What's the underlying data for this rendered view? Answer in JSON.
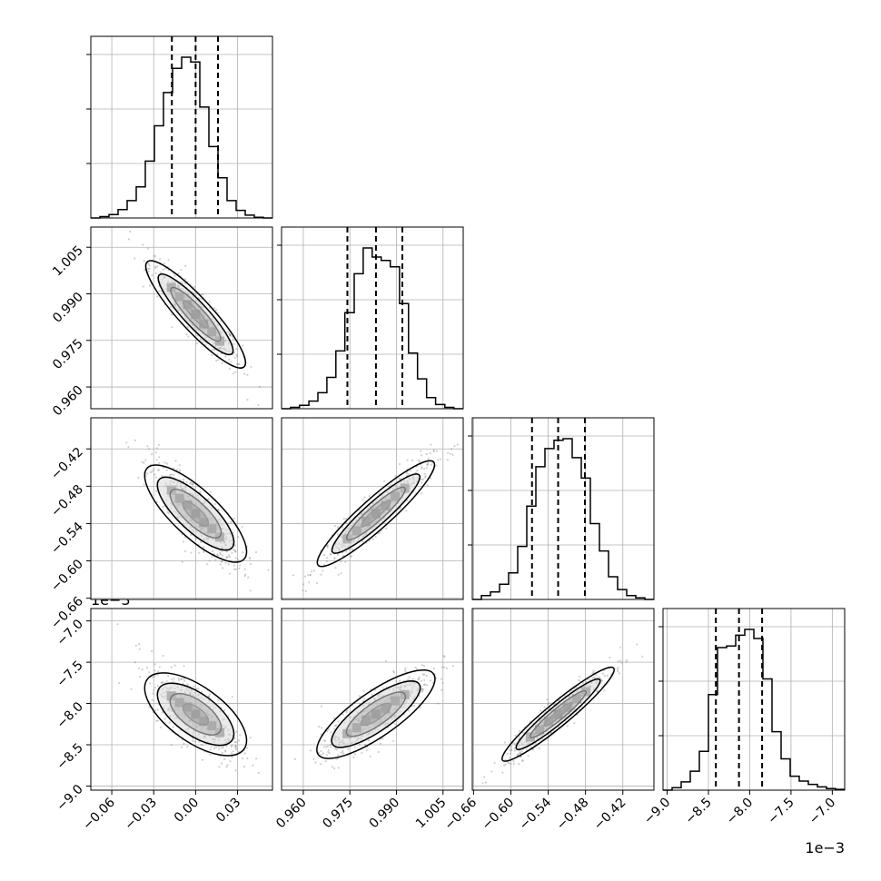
{
  "chart_data": {
    "type": "corner",
    "grid": true,
    "parameters": [
      {
        "index": 0,
        "range": [
          -0.075,
          0.055
        ],
        "ticks": [
          -0.06,
          -0.03,
          0.0,
          0.03
        ],
        "tick_labels": [
          "−0.06",
          "−0.03",
          "0.00",
          "0.03"
        ],
        "offset_label": "",
        "quantiles": [
          -0.017,
          0.0,
          0.016
        ]
      },
      {
        "index": 1,
        "range": [
          0.953,
          1.0115
        ],
        "ticks": [
          0.96,
          0.975,
          0.99,
          1.005
        ],
        "tick_labels": [
          "0.960",
          "0.975",
          "0.990",
          "1.005"
        ],
        "offset_label": "",
        "quantiles": [
          0.9742,
          0.9834,
          0.9919
        ]
      },
      {
        "index": 2,
        "range": [
          -0.662,
          -0.37
        ],
        "ticks": [
          -0.66,
          -0.6,
          -0.54,
          -0.48,
          -0.42
        ],
        "tick_labels": [
          "−0.66",
          "−0.60",
          "−0.54",
          "−0.48",
          "−0.42"
        ],
        "offset_label": "",
        "quantiles": [
          -0.566,
          -0.524,
          -0.481
        ]
      },
      {
        "index": 3,
        "range": [
          -9.05,
          -6.85
        ],
        "ticks": [
          -9.0,
          -8.5,
          -8.0,
          -7.5,
          -7.0
        ],
        "tick_labels": [
          "−9.0",
          "−8.5",
          "−8.0",
          "−7.5",
          "−7.0"
        ],
        "offset_label": "1e−3",
        "quantiles": [
          -8.41,
          -8.13,
          -7.85
        ]
      }
    ],
    "histograms": [
      {
        "param": 0,
        "edges": [
          -0.075,
          -0.0685,
          -0.062,
          -0.0555,
          -0.049,
          -0.0425,
          -0.036,
          -0.0295,
          -0.023,
          -0.0165,
          -0.01,
          -0.0035,
          0.003,
          0.0095,
          0.016,
          0.0225,
          0.029,
          0.0355,
          0.042,
          0.0485,
          0.055
        ],
        "counts": [
          0,
          2,
          5,
          12,
          25,
          45,
          82,
          133,
          181,
          216,
          232,
          225,
          160,
          103,
          58,
          25,
          11,
          4,
          1,
          0
        ]
      },
      {
        "param": 1,
        "edges": [
          0.953,
          0.9559,
          0.9588,
          0.9618,
          0.9647,
          0.9676,
          0.9705,
          0.9734,
          0.9764,
          0.9793,
          0.9822,
          0.9851,
          0.988,
          0.991,
          0.9939,
          0.9968,
          0.9997,
          1.0026,
          1.0056,
          1.0085,
          1.0115
        ],
        "counts": [
          0,
          2,
          5,
          11,
          23,
          45,
          83,
          138,
          194,
          231,
          218,
          213,
          204,
          151,
          80,
          43,
          16,
          6,
          2,
          0
        ]
      },
      {
        "param": 2,
        "edges": [
          -0.662,
          -0.6474,
          -0.6328,
          -0.6182,
          -0.6036,
          -0.589,
          -0.5744,
          -0.5598,
          -0.5452,
          -0.5306,
          -0.516,
          -0.5014,
          -0.4868,
          -0.4722,
          -0.4576,
          -0.443,
          -0.4284,
          -0.4138,
          -0.3992,
          -0.3846,
          -0.37
        ],
        "counts": [
          0,
          5,
          10,
          20,
          35,
          70,
          123,
          175,
          199,
          210,
          212,
          187,
          160,
          100,
          64,
          30,
          13,
          5,
          2,
          0
        ]
      },
      {
        "param": 3,
        "edges": [
          -9.05,
          -8.94,
          -8.83,
          -8.72,
          -8.61,
          -8.5,
          -8.39,
          -8.28,
          -8.17,
          -8.06,
          -7.95,
          -7.84,
          -7.73,
          -7.62,
          -7.51,
          -7.4,
          -7.29,
          -7.18,
          -7.07,
          -6.96,
          -6.85
        ],
        "counts": [
          0,
          3,
          10,
          23,
          47,
          116,
          173,
          175,
          188,
          195,
          184,
          135,
          71,
          38,
          17,
          11,
          7,
          4,
          2,
          1
        ]
      }
    ],
    "scatter_panels": [
      {
        "row": 1,
        "col": 0,
        "correlation": -0.91
      },
      {
        "row": 2,
        "col": 0,
        "correlation": -0.82
      },
      {
        "row": 2,
        "col": 1,
        "correlation": 0.93
      },
      {
        "row": 3,
        "col": 0,
        "correlation": -0.72
      },
      {
        "row": 3,
        "col": 1,
        "correlation": 0.83
      },
      {
        "row": 3,
        "col": 2,
        "correlation": 0.95
      }
    ],
    "x_offset_label_panel": [
      3,
      3
    ],
    "y_offset_label_panel": [
      3,
      0
    ],
    "colors": {
      "contour": "#000000",
      "points": "#777777",
      "grid": "#b0b0b0",
      "axis": "#000000",
      "background": "#ffffff"
    }
  }
}
